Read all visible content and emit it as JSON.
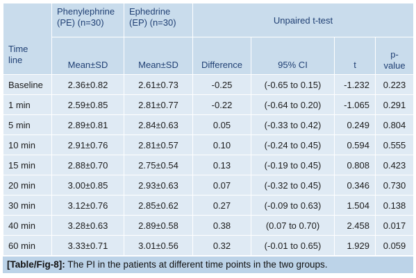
{
  "header": {
    "timeline": [
      "Time",
      "line"
    ],
    "pe_group": [
      "Phenylephrine",
      "(PE) (n=30)"
    ],
    "ep_group": [
      "Ephedrine",
      "(EP) (n=30)"
    ],
    "ttest": "Unpaired t-test",
    "mean_sd_pe": "Mean±SD",
    "mean_sd_ep": "Mean±SD",
    "difference": "Difference",
    "ci": "95% CI",
    "t": "t",
    "pvalue": [
      "p-",
      "value"
    ]
  },
  "rows": [
    {
      "time": "Baseline",
      "pe": "2.36±0.82",
      "ep": "2.61±0.73",
      "diff": "-0.25",
      "ci": "(-0.65 to 0.15)",
      "t": "-1.232",
      "p": "0.223"
    },
    {
      "time": "1 min",
      "pe": "2.59±0.85",
      "ep": "2.81±0.77",
      "diff": "-0.22",
      "ci": "(-0.64 to 0.20)",
      "t": "-1.065",
      "p": "0.291"
    },
    {
      "time": "5 min",
      "pe": "2.89±0.81",
      "ep": "2.84±0.63",
      "diff": "0.05",
      "ci": "(-0.33 to 0.42)",
      "t": "0.249",
      "p": "0.804"
    },
    {
      "time": "10 min",
      "pe": "2.91±0.76",
      "ep": "2.81±0.57",
      "diff": "0.10",
      "ci": "(-0.24 to 0.45)",
      "t": "0.594",
      "p": "0.555"
    },
    {
      "time": "15 min",
      "pe": "2.88±0.70",
      "ep": "2.75±0.54",
      "diff": "0.13",
      "ci": "(-0.19 to 0.45)",
      "t": "0.808",
      "p": "0.423"
    },
    {
      "time": "20 min",
      "pe": "3.00±0.85",
      "ep": "2.93±0.63",
      "diff": "0.07",
      "ci": "(-0.32 to 0.45)",
      "t": "0.346",
      "p": "0.730"
    },
    {
      "time": "30 min",
      "pe": "3.12±0.76",
      "ep": "2.85±0.62",
      "diff": "0.27",
      "ci": "(-0.09 to 0.63)",
      "t": "1.504",
      "p": "0.138"
    },
    {
      "time": "40 min",
      "pe": "3.28±0.63",
      "ep": "2.89±0.58",
      "diff": "0.38",
      "ci": "(0.07 to 0.70)",
      "t": "2.458",
      "p": "0.017"
    },
    {
      "time": "60 min",
      "pe": "3.33±0.71",
      "ep": "3.01±0.56",
      "diff": "0.32",
      "ci": "(-0.01 to 0.65)",
      "t": "1.929",
      "p": "0.059"
    }
  ],
  "caption": {
    "label": "[Table/Fig-8]:",
    "text": "The PI in the patients at different time points in the two groups."
  },
  "colors": {
    "header_bg": "#c9dcec",
    "body_bg": "#dfeaf4",
    "caption_bg": "#bcd3e8",
    "header_text": "#1f3f73"
  }
}
